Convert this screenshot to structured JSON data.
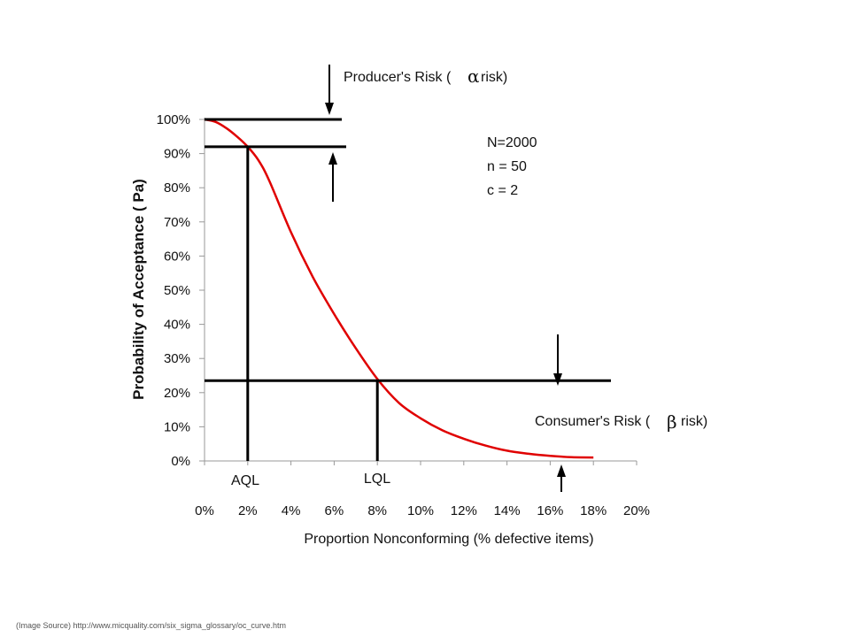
{
  "chart_data": {
    "type": "line",
    "title": "",
    "xlabel": "Proportion Nonconforming (% defective items)",
    "ylabel": "Probability of Acceptance ( Pa)",
    "xlim": [
      0,
      20
    ],
    "ylim": [
      0,
      100
    ],
    "x_tick_labels": [
      "0%",
      "2%",
      "4%",
      "6%",
      "8%",
      "10%",
      "12%",
      "14%",
      "16%",
      "18%",
      "20%"
    ],
    "y_tick_labels": [
      "0%",
      "10%",
      "20%",
      "30%",
      "40%",
      "50%",
      "60%",
      "70%",
      "80%",
      "90%",
      "100%"
    ],
    "grid": false,
    "legend": "none",
    "series": [
      {
        "color": "#e00000",
        "x": [
          0,
          0.5,
          1,
          1.5,
          2,
          2.5,
          3,
          4,
          5,
          6,
          7,
          8,
          9,
          10,
          11,
          12,
          13,
          14,
          15,
          16,
          17,
          18
        ],
        "y": [
          100,
          99.3,
          97.5,
          95,
          92,
          88,
          82,
          67,
          54,
          43,
          33,
          24,
          17,
          12.5,
          9,
          6.5,
          4.5,
          3,
          2.1,
          1.5,
          1.1,
          1
        ]
      }
    ],
    "reference_lines": {
      "producer_risk_top_y": 100,
      "producer_risk_bottom_y": 92,
      "consumer_risk_y": 23.5,
      "aql_x": 2,
      "lql_x": 8
    },
    "annotations": {
      "producer_risk": "Producer's Risk (",
      "producer_risk_symbol": "α",
      "producer_risk_end": "risk)",
      "consumer_risk": "Consumer's Risk (",
      "consumer_risk_symbol": "β",
      "consumer_risk_end": "risk)",
      "params": [
        "N=2000",
        "n = 50",
        "c = 2"
      ],
      "aql_label": "AQL",
      "lql_label": "LQL"
    }
  },
  "source_note": "(Image Source) http://www.micquality.com/six_sigma_glossary/oc_curve.htm"
}
